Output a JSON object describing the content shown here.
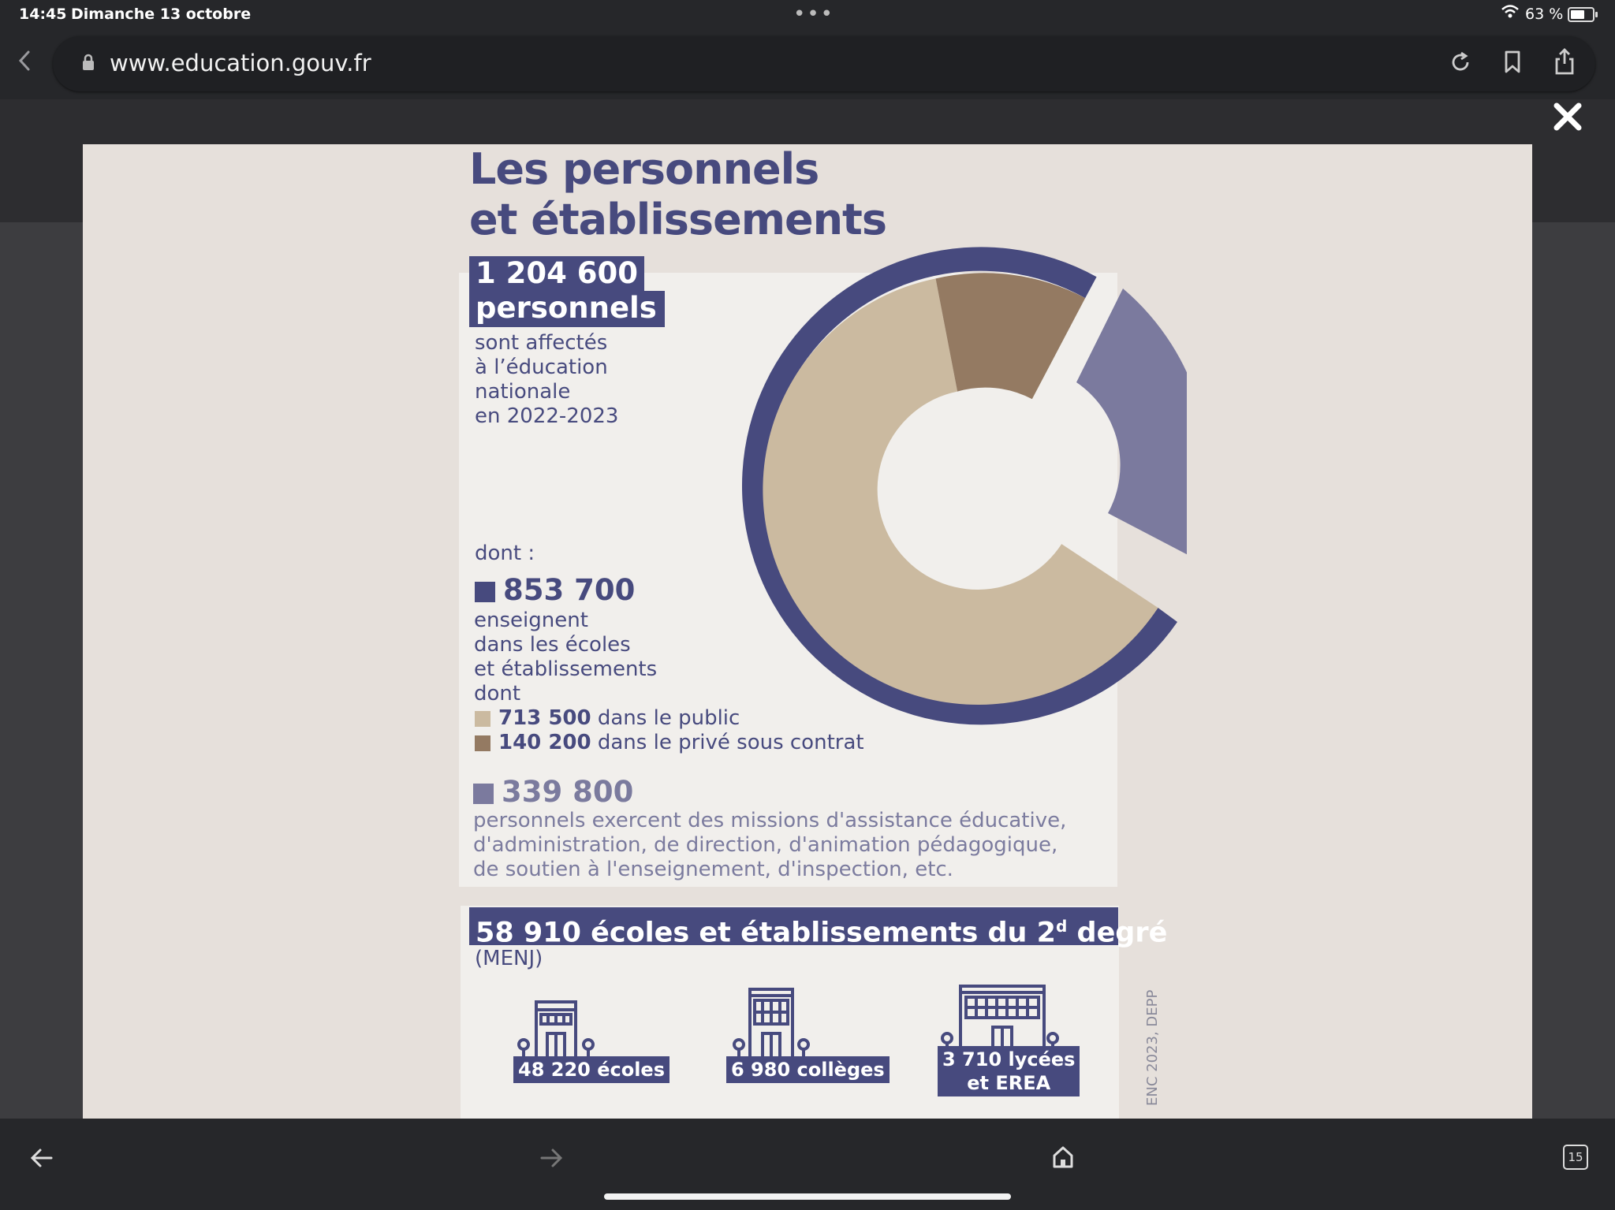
{
  "status_bar": {
    "time": "14:45",
    "date": "Dimanche 13 octobre",
    "battery": "63 %"
  },
  "browser": {
    "url": "www.education.gouv.fr"
  },
  "tab_count": "15",
  "infographic": {
    "title_line1": "Les personnels",
    "title_line2": "et établissements",
    "total_number": "1 204 600",
    "total_label": "personnels",
    "total_desc": [
      "sont affectés",
      "à l’éducation",
      "nationale",
      "en 2022-2023"
    ],
    "dont": "dont :",
    "teachers": {
      "number": "853 700",
      "desc": [
        "enseignent",
        "dans les écoles",
        "et établissements",
        "dont"
      ],
      "public_value": "713 500",
      "public_label": "dans le public",
      "private_value": "140 200",
      "private_label": "dans le privé sous contrat"
    },
    "others": {
      "number": "339 800",
      "desc": [
        "personnels exercent des missions d'assistance éducative,",
        "d'administration, de direction, d'animation pédagogique,",
        "de soutien à l'enseignement, d'inspection, etc."
      ]
    },
    "schools_banner_main": "58 910 écoles et établissements du 2",
    "schools_banner_sup": "d",
    "schools_banner_end": " degré",
    "menj": "(MENJ)",
    "buildings": [
      {
        "label": "48 220 écoles"
      },
      {
        "label": "6 980 collèges"
      },
      {
        "label_line1": "3 710 lycées",
        "label_line2": "et EREA"
      }
    ],
    "source": "ENC 2023, DEPP",
    "colors": {
      "navy": "#474a7e",
      "public": "#cbbaa0",
      "private": "#947a62",
      "others": "#7b7a9e"
    }
  }
}
